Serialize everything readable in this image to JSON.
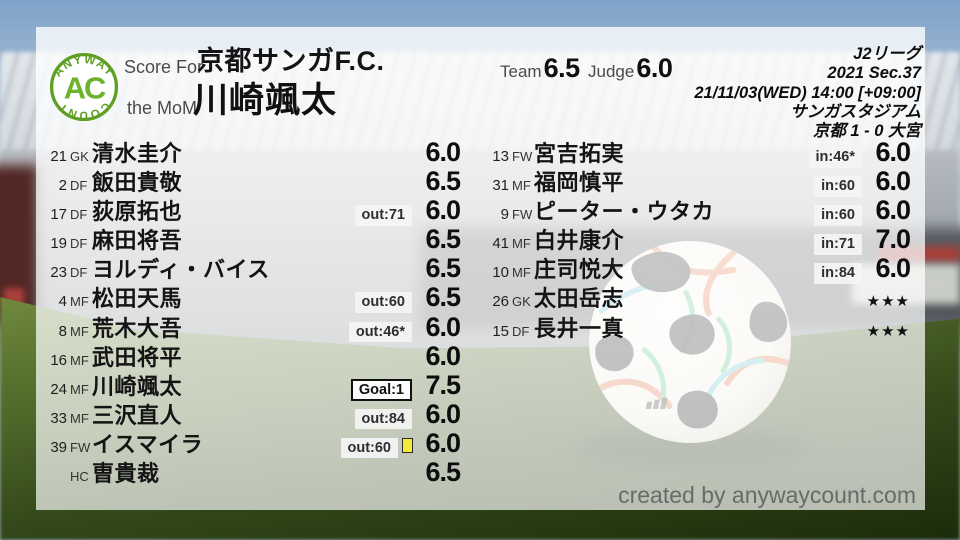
{
  "logo": {
    "arc_top": "ANYWAY",
    "arc_bottom": "COUNT",
    "monogram": "AC"
  },
  "header": {
    "score_for_label": "Score For",
    "team_name": "京都サンガF.C.",
    "mom_label": "the MoM",
    "mom_name": "川崎颯太",
    "team_label": "Team",
    "team_score": "6.5",
    "judge_label": "Judge",
    "judge_score": "6.0",
    "match_info": [
      "J2リーグ",
      "2021 Sec.37",
      "21/11/03(WED) 14:00 [+09:00]",
      "サンガスタジアム",
      "京都 1 - 0 大宮"
    ]
  },
  "left_column": {
    "players": [
      {
        "number": "21",
        "pos": "GK",
        "name": "清水圭介",
        "score": "6.0"
      },
      {
        "number": "2",
        "pos": "DF",
        "name": "飯田貴敬",
        "score": "6.5"
      },
      {
        "number": "17",
        "pos": "DF",
        "name": "荻原拓也",
        "badge": "out:71",
        "score": "6.0"
      },
      {
        "number": "19",
        "pos": "DF",
        "name": "麻田将吾",
        "score": "6.5"
      },
      {
        "number": "23",
        "pos": "DF",
        "name": "ヨルディ・バイス",
        "score": "6.5"
      },
      {
        "number": "4",
        "pos": "MF",
        "name": "松田天馬",
        "badge": "out:60",
        "score": "6.5"
      },
      {
        "number": "8",
        "pos": "MF",
        "name": "荒木大吾",
        "badge": "out:46*",
        "score": "6.0"
      },
      {
        "number": "16",
        "pos": "MF",
        "name": "武田将平",
        "score": "6.0"
      },
      {
        "number": "24",
        "pos": "MF",
        "name": "川崎颯太",
        "badge": "Goal:1",
        "badge_style": "goal",
        "score": "7.5"
      },
      {
        "number": "33",
        "pos": "MF",
        "name": "三沢直人",
        "badge": "out:84",
        "score": "6.0"
      },
      {
        "number": "39",
        "pos": "FW",
        "name": "イスマイラ",
        "badge": "out:60",
        "yellow_card": true,
        "score": "6.0"
      },
      {
        "number": "",
        "pos": "HC",
        "name": "曺貴裁",
        "score": "6.5"
      }
    ]
  },
  "right_column": {
    "players": [
      {
        "number": "13",
        "pos": "FW",
        "name": "宮吉拓実",
        "badge": "in:46*",
        "score": "6.0"
      },
      {
        "number": "31",
        "pos": "MF",
        "name": "福岡慎平",
        "badge": "in:60",
        "score": "6.0"
      },
      {
        "number": "9",
        "pos": "FW",
        "name": "ピーター・ウタカ",
        "badge": "in:60",
        "score": "6.0"
      },
      {
        "number": "41",
        "pos": "MF",
        "name": "白井康介",
        "badge": "in:71",
        "score": "7.0"
      },
      {
        "number": "10",
        "pos": "MF",
        "name": "庄司悦大",
        "badge": "in:84",
        "score": "6.0"
      },
      {
        "number": "26",
        "pos": "GK",
        "name": "太田岳志",
        "stars": "★★★"
      },
      {
        "number": "15",
        "pos": "DF",
        "name": "長井一真",
        "stars": "★★★"
      }
    ]
  },
  "footer": {
    "credit": "created by anywaycount.com"
  },
  "colors": {
    "accent_green": "#5ea024",
    "badge_bg": "#f4f4f4",
    "yellow_card": "#f4ea38",
    "goal_border": "#111111"
  }
}
